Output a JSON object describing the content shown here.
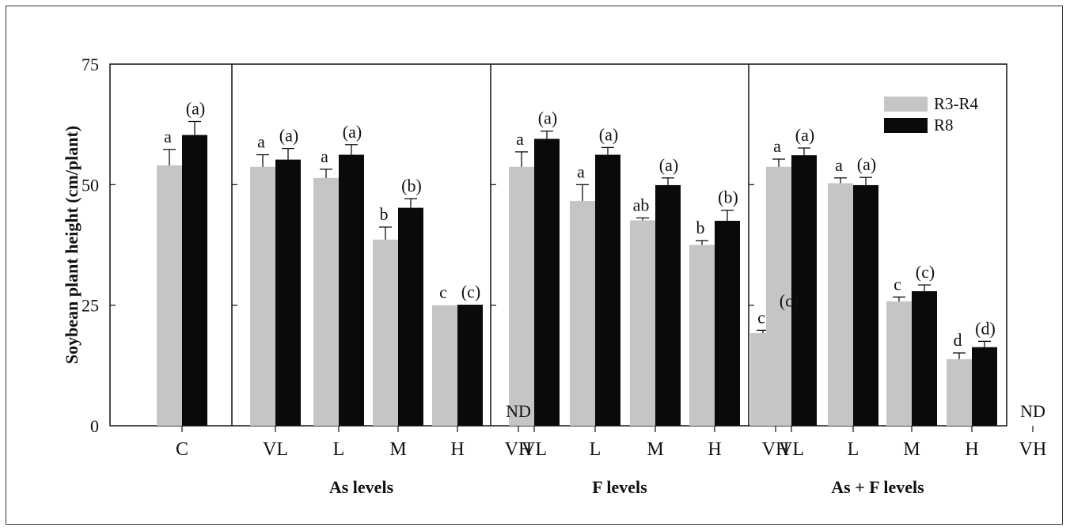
{
  "chart_data": {
    "type": "bar",
    "ylabel": "Soybean plant height (cm/plant)",
    "ylim": [
      0,
      75
    ],
    "yticks": [
      0,
      25,
      50,
      75
    ],
    "legend": {
      "placement": "top-right",
      "entries": [
        "R3-R4",
        "R8"
      ]
    },
    "series_colors": {
      "R3-R4": "#c4c5c7",
      "R8": "#0a0a0a"
    },
    "missing_label": "ND",
    "panels": [
      {
        "title": "",
        "categories": [
          "C"
        ],
        "series": [
          {
            "name": "R3-R4",
            "values": [
              54
            ],
            "errors": [
              3.3
            ],
            "letters": [
              "a"
            ]
          },
          {
            "name": "R8",
            "values": [
              60.3
            ],
            "errors": [
              2.8
            ],
            "letters": [
              "(a)"
            ]
          }
        ]
      },
      {
        "title": "As levels",
        "categories": [
          "VL",
          "L",
          "M",
          "H",
          "VH"
        ],
        "series": [
          {
            "name": "R3-R4",
            "values": [
              53.7,
              51.4,
              38.6,
              25,
              null
            ],
            "errors": [
              2.5,
              1.8,
              2.6,
              0,
              null
            ],
            "letters": [
              "a",
              "a",
              "b",
              "c",
              ""
            ]
          },
          {
            "name": "R8",
            "values": [
              55.2,
              56.2,
              45.2,
              25.1,
              null
            ],
            "errors": [
              2.3,
              2.1,
              1.9,
              0,
              null
            ],
            "letters": [
              "(a)",
              "(a)",
              "(b)",
              "(c)",
              ""
            ]
          }
        ]
      },
      {
        "title": "F levels",
        "categories": [
          "VL",
          "L",
          "M",
          "H",
          "VH"
        ],
        "series": [
          {
            "name": "R3-R4",
            "values": [
              53.7,
              46.6,
              42.6,
              37.5,
              19.2
            ],
            "errors": [
              3.1,
              3.4,
              0.5,
              0.9,
              0.6
            ],
            "letters": [
              "a",
              "a",
              "ab",
              "b",
              "c"
            ]
          },
          {
            "name": "R8",
            "values": [
              59.5,
              56.2,
              49.9,
              42.5,
              23.2
            ],
            "errors": [
              1.6,
              1.5,
              1.5,
              2.2,
              0
            ],
            "letters": [
              "(a)",
              "(a)",
              "(a)",
              "(b)",
              "(c)"
            ]
          }
        ]
      },
      {
        "title": "As + F levels",
        "categories": [
          "VL",
          "L",
          "M",
          "H",
          "VH"
        ],
        "series": [
          {
            "name": "R3-R4",
            "values": [
              53.7,
              50.3,
              25.8,
              13.8,
              null
            ],
            "errors": [
              1.6,
              1.1,
              0.9,
              1.3,
              null
            ],
            "letters": [
              "a",
              "a",
              "c",
              "d",
              ""
            ]
          },
          {
            "name": "R8",
            "values": [
              56.1,
              49.9,
              27.9,
              16.3,
              null
            ],
            "errors": [
              1.5,
              1.6,
              1.3,
              1.2,
              null
            ],
            "letters": [
              "(a)",
              "(a)",
              "(c)",
              "(d)",
              ""
            ]
          }
        ]
      }
    ]
  }
}
